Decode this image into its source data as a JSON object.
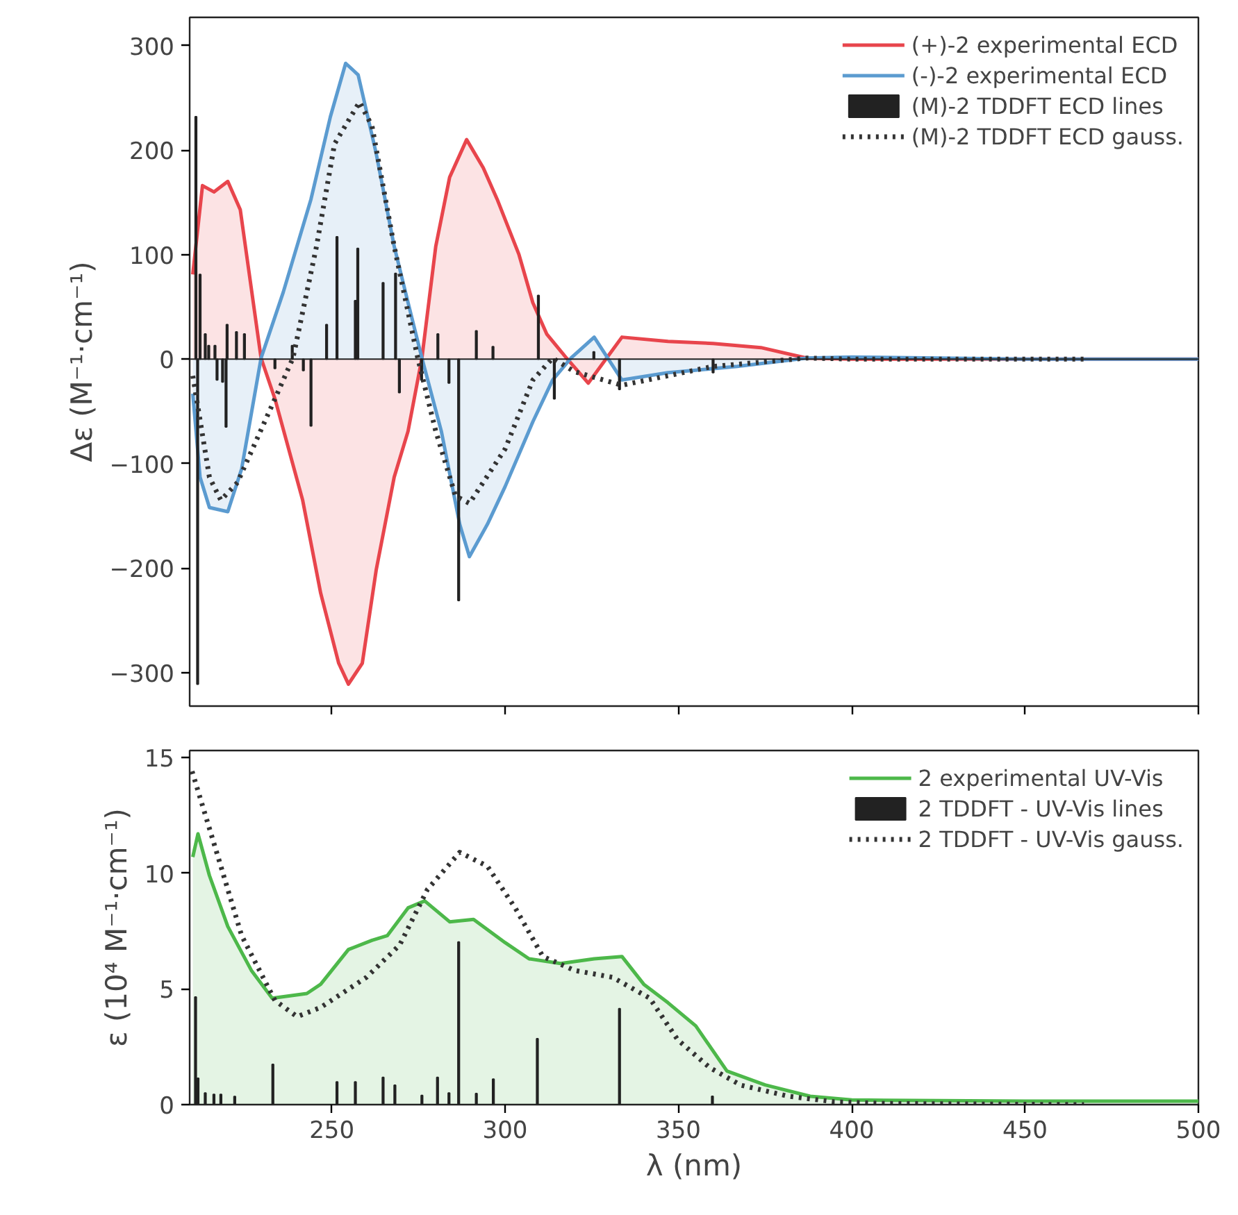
{
  "chart_data": [
    {
      "type": "line",
      "ylabel": "Δε (M⁻¹·cm⁻¹)",
      "xlim": [
        209,
        500
      ],
      "ylim": [
        -332,
        327
      ],
      "xticks": [
        250,
        300,
        350,
        400,
        450,
        500
      ],
      "yticks": [
        -300,
        -200,
        -100,
        0,
        100,
        200,
        300
      ],
      "tick_labels": "y",
      "grid": false,
      "legend": "top right",
      "ref_lines": [
        {
          "axis": "y",
          "value": 0,
          "color": "#222222"
        }
      ],
      "series": [
        {
          "name": "(+)-2 experimental ECD",
          "type": "area",
          "color": "#e8454c",
          "line_style": "solid",
          "x": [
            209.9,
            212.7,
            216,
            220,
            223.6,
            229.6,
            233.6,
            241.6,
            246.8,
            252,
            254.8,
            258.8,
            262.8,
            268,
            272,
            276,
            280,
            284,
            288.9,
            293.7,
            297.7,
            304,
            308,
            312,
            317.7,
            324,
            333.7,
            347,
            360,
            373.8,
            387,
            400,
            450,
            500
          ],
          "values": [
            81,
            166,
            160,
            170,
            143,
            1,
            -38,
            -135,
            -224,
            -291,
            -311,
            -291,
            -202,
            -113,
            -69,
            1,
            108,
            174,
            210,
            183,
            153,
            100,
            54,
            24,
            1,
            -23,
            21,
            17,
            15,
            11,
            1,
            0,
            0,
            0
          ]
        },
        {
          "name": "(-)-2 experimental ECD",
          "type": "area",
          "color": "#5b9bd0",
          "line_style": "solid",
          "x": [
            209.9,
            212,
            214.7,
            220,
            224,
            229.6,
            236,
            244,
            249.6,
            254,
            257.6,
            262.8,
            268,
            272,
            276,
            281.6,
            286.9,
            289.7,
            294.9,
            300,
            308,
            313.7,
            319,
            325.7,
            333.7,
            347,
            367,
            387,
            400,
            450,
            500
          ],
          "values": [
            -33,
            -113,
            -142,
            -146,
            -105,
            1,
            64,
            153,
            232,
            283,
            272,
            197,
            108,
            54,
            1,
            -69,
            -158,
            -189,
            -158,
            -122,
            -60,
            -20,
            1,
            21,
            -20,
            -13,
            -7,
            1,
            2,
            0,
            0
          ]
        },
        {
          "name": "(M)-2 TDDFT ECD lines",
          "type": "bar",
          "color": "#222222",
          "x": [
            210.8,
            211.3,
            212,
            213.5,
            214.5,
            216.3,
            216.9,
            218.5,
            219.5,
            219.8,
            222.5,
            224.8,
            233.6,
            238.6,
            241.8,
            244,
            248.5,
            251.5,
            256.8,
            257.5,
            264.8,
            268.4,
            269.5,
            275.9,
            280.6,
            283.8,
            286.6,
            291.7,
            296.5,
            309.6,
            314.2,
            325.6,
            333,
            360
          ],
          "values": [
            232,
            -311,
            81,
            24,
            13,
            13,
            -20,
            -22,
            -65,
            33,
            26,
            24,
            -9,
            13,
            -11,
            -64,
            33,
            117,
            56,
            106,
            73,
            82,
            -32,
            -20,
            24,
            -23,
            -231,
            27,
            12,
            61,
            -38,
            7,
            -29,
            -13
          ]
        },
        {
          "name": "(M)-2 TDDFT ECD gauss.",
          "color": "#333333",
          "line_style": "dotted",
          "x": [
            209.9,
            214.7,
            218,
            222.8,
            233.6,
            238.8,
            245.6,
            250.8,
            258,
            261.6,
            268,
            274.8,
            280,
            285.7,
            289.7,
            300,
            308,
            313.7,
            320,
            333.7,
            360,
            387,
            400,
            467
          ],
          "values": [
            -16,
            -113,
            -135,
            -118,
            -38,
            1,
            108,
            206,
            246,
            223,
            108,
            1,
            -69,
            -131,
            -138,
            -86,
            -20,
            1,
            -12,
            -25,
            -7,
            1,
            0,
            0
          ]
        }
      ]
    },
    {
      "type": "line",
      "xlabel": "λ (nm)",
      "ylabel": "ε (10⁴ M⁻¹·cm⁻¹)",
      "xlim": [
        209,
        500
      ],
      "ylim": [
        0,
        15.3
      ],
      "xticks": [
        250,
        300,
        350,
        400,
        450,
        500
      ],
      "yticks": [
        0,
        5,
        10,
        15
      ],
      "grid": false,
      "legend": "top right",
      "series": [
        {
          "name": "2 experimental UV-Vis",
          "type": "area",
          "color": "#4db84a",
          "line_style": "solid",
          "x": [
            209.9,
            211.4,
            214.7,
            220,
            226.8,
            232.8,
            242.8,
            246.8,
            254.8,
            261.6,
            266,
            272,
            276.8,
            284,
            290.9,
            300,
            306.9,
            316,
            325.7,
            333.7,
            340,
            347,
            355,
            364,
            375,
            388,
            400,
            450,
            500
          ],
          "values": [
            10.7,
            11.7,
            9.9,
            7.7,
            5.8,
            4.6,
            4.8,
            5.2,
            6.7,
            7.1,
            7.3,
            8.5,
            8.8,
            7.9,
            8.0,
            7.0,
            6.3,
            6.1,
            6.3,
            6.4,
            5.2,
            4.4,
            3.4,
            1.45,
            0.85,
            0.36,
            0.2,
            0.15,
            0.15
          ]
        },
        {
          "name": "2 TDDFT - UV-Vis lines",
          "type": "bar",
          "color": "#222222",
          "x": [
            210.7,
            211.4,
            213.5,
            216,
            218,
            222,
            233,
            251.5,
            256.8,
            264.8,
            268.2,
            276,
            280.5,
            283.8,
            286.6,
            291.7,
            296.6,
            309.3,
            333,
            359.8
          ],
          "values": [
            4.65,
            1.14,
            0.5,
            0.44,
            0.44,
            0.35,
            1.74,
            0.98,
            0.98,
            1.18,
            0.84,
            0.4,
            1.18,
            0.5,
            7.03,
            0.48,
            1.1,
            2.85,
            4.15,
            0.36
          ]
        },
        {
          "name": "2 TDDFT - UV-Vis gauss.",
          "color": "#333333",
          "line_style": "dotted",
          "x": [
            209.7,
            217.6,
            224,
            233.6,
            240,
            246.8,
            260,
            269.6,
            277.6,
            286.9,
            294.9,
            302.9,
            310.9,
            320,
            331,
            341.7,
            349.8,
            359,
            368,
            381.8,
            395,
            410,
            467
          ],
          "values": [
            14.4,
            10.5,
            7.3,
            4.5,
            3.8,
            4.2,
            5.5,
            6.9,
            9.3,
            10.9,
            10.3,
            8.5,
            6.4,
            5.8,
            5.5,
            4.6,
            2.8,
            1.6,
            0.84,
            0.36,
            0.12,
            0.05,
            0
          ]
        }
      ]
    }
  ]
}
